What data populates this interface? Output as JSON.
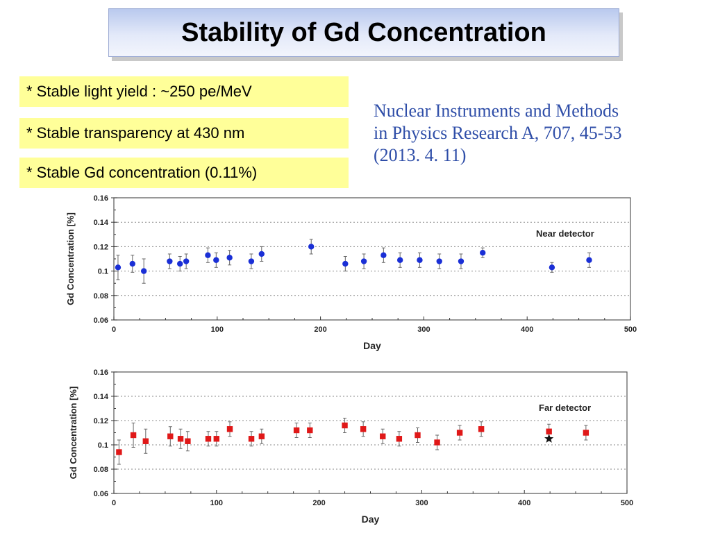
{
  "title": "Stability of Gd Concentration",
  "bullets": [
    "* Stable light yield :  ~250 pe/MeV",
    "* Stable transparency at 430 nm",
    "* Stable Gd concentration (0.11%)"
  ],
  "citation": {
    "line1": "Nuclear Instruments and Methods",
    "line2": "in Physics Research A, 707, 45-53",
    "line3": "(2013. 4. 11)"
  },
  "colors": {
    "near_series": "#1a2fd6",
    "far_series": "#e01818",
    "citation_text": "#2f4ea8",
    "bullet_background": "#ffff99"
  },
  "chart_data": [
    {
      "type": "scatter",
      "title": "",
      "annotation": "Near detector",
      "xlabel": "Day",
      "ylabel": "Gd Concentration [%]",
      "xlim": [
        0,
        500
      ],
      "ylim": [
        0.06,
        0.16
      ],
      "xticks": [
        "0",
        "100",
        "200",
        "300",
        "400",
        "500"
      ],
      "yticks": [
        "0.06",
        "0.08",
        "0.1",
        "0.12",
        "0.14",
        "0.16"
      ],
      "grid": "horizontal dotted",
      "marker": "circle",
      "color": "#1a2fd6",
      "points": [
        {
          "x": 4,
          "y": 0.103,
          "err": 0.01
        },
        {
          "x": 18,
          "y": 0.106,
          "err": 0.007
        },
        {
          "x": 29,
          "y": 0.1,
          "err": 0.01
        },
        {
          "x": 54,
          "y": 0.108,
          "err": 0.006
        },
        {
          "x": 64,
          "y": 0.106,
          "err": 0.006
        },
        {
          "x": 70,
          "y": 0.108,
          "err": 0.006
        },
        {
          "x": 91,
          "y": 0.113,
          "err": 0.006
        },
        {
          "x": 99,
          "y": 0.109,
          "err": 0.006
        },
        {
          "x": 112,
          "y": 0.111,
          "err": 0.006
        },
        {
          "x": 133,
          "y": 0.108,
          "err": 0.006
        },
        {
          "x": 143,
          "y": 0.114,
          "err": 0.006
        },
        {
          "x": 191,
          "y": 0.12,
          "err": 0.006
        },
        {
          "x": 224,
          "y": 0.106,
          "err": 0.006
        },
        {
          "x": 242,
          "y": 0.108,
          "err": 0.006
        },
        {
          "x": 261,
          "y": 0.113,
          "err": 0.006
        },
        {
          "x": 277,
          "y": 0.109,
          "err": 0.006
        },
        {
          "x": 296,
          "y": 0.109,
          "err": 0.006
        },
        {
          "x": 315,
          "y": 0.108,
          "err": 0.006
        },
        {
          "x": 336,
          "y": 0.108,
          "err": 0.006
        },
        {
          "x": 357,
          "y": 0.115,
          "err": 0.004
        },
        {
          "x": 424,
          "y": 0.103,
          "err": 0.004
        },
        {
          "x": 460,
          "y": 0.109,
          "err": 0.006
        }
      ]
    },
    {
      "type": "scatter",
      "title": "",
      "annotation": "Far detector",
      "xlabel": "Day",
      "ylabel": "Gd Concentration [%]",
      "xlim": [
        0,
        500
      ],
      "ylim": [
        0.06,
        0.16
      ],
      "xticks": [
        "0",
        "100",
        "200",
        "300",
        "400",
        "500"
      ],
      "yticks": [
        "0.06",
        "0.08",
        "0.1",
        "0.12",
        "0.14",
        "0.16"
      ],
      "grid": "horizontal dotted",
      "marker": "square",
      "color": "#e01818",
      "points": [
        {
          "x": 5,
          "y": 0.094,
          "err": 0.01
        },
        {
          "x": 19,
          "y": 0.108,
          "err": 0.01
        },
        {
          "x": 31,
          "y": 0.103,
          "err": 0.01
        },
        {
          "x": 55,
          "y": 0.107,
          "err": 0.008
        },
        {
          "x": 65,
          "y": 0.105,
          "err": 0.008
        },
        {
          "x": 72,
          "y": 0.103,
          "err": 0.008
        },
        {
          "x": 92,
          "y": 0.105,
          "err": 0.006
        },
        {
          "x": 100,
          "y": 0.105,
          "err": 0.006
        },
        {
          "x": 113,
          "y": 0.113,
          "err": 0.006
        },
        {
          "x": 134,
          "y": 0.105,
          "err": 0.006
        },
        {
          "x": 144,
          "y": 0.107,
          "err": 0.006
        },
        {
          "x": 178,
          "y": 0.112,
          "err": 0.006
        },
        {
          "x": 191,
          "y": 0.112,
          "err": 0.006
        },
        {
          "x": 225,
          "y": 0.116,
          "err": 0.006
        },
        {
          "x": 243,
          "y": 0.113,
          "err": 0.006
        },
        {
          "x": 262,
          "y": 0.107,
          "err": 0.006
        },
        {
          "x": 278,
          "y": 0.105,
          "err": 0.006
        },
        {
          "x": 296,
          "y": 0.108,
          "err": 0.006
        },
        {
          "x": 315,
          "y": 0.102,
          "err": 0.006
        },
        {
          "x": 337,
          "y": 0.11,
          "err": 0.006
        },
        {
          "x": 358,
          "y": 0.113,
          "err": 0.006
        },
        {
          "x": 424,
          "y": 0.111,
          "err": 0.006
        },
        {
          "x": 460,
          "y": 0.11,
          "err": 0.006
        }
      ],
      "special_point": {
        "x": 424,
        "y": 0.105,
        "marker": "star"
      }
    }
  ]
}
